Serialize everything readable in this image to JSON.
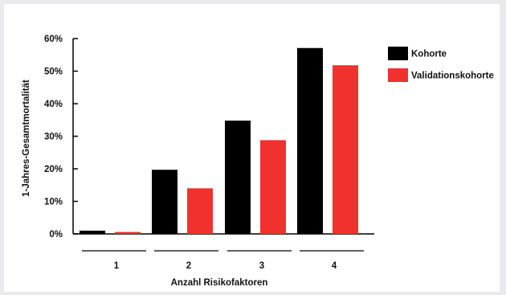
{
  "chart_data": {
    "type": "bar",
    "categories": [
      "1",
      "2",
      "3",
      "4"
    ],
    "series": [
      {
        "name": "Kohorte",
        "values": [
          1,
          19.7,
          34.8,
          57.1
        ],
        "color": "#000000"
      },
      {
        "name": "Validationskohorte",
        "values": [
          0.6,
          14,
          28.8,
          51.8
        ],
        "color": "#f0312e"
      }
    ],
    "xlabel": "Anzahl Risikofaktoren",
    "ylabel": "1-Jahres-Gesamtmortalität",
    "ylim": [
      0,
      60
    ],
    "yticks": [
      "0%",
      "10%",
      "20%",
      "30%",
      "40%",
      "50%",
      "60%"
    ],
    "legend_position": "top-right",
    "grid": false
  }
}
